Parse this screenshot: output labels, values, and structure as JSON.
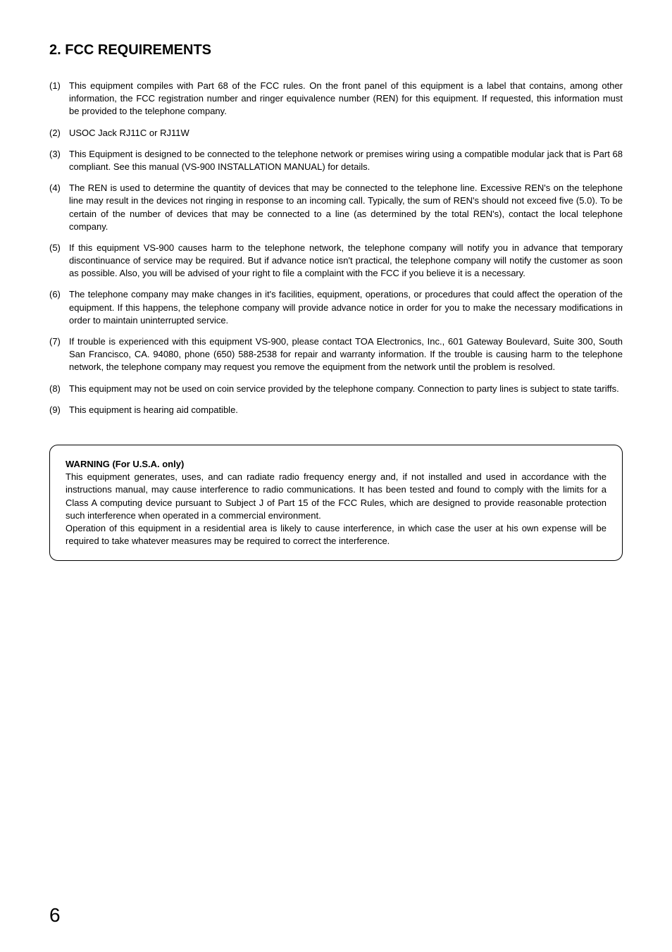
{
  "title": "2. FCC REQUIREMENTS",
  "title_fontsize": 20,
  "title_fontweight": "bold",
  "text_color": "#000000",
  "background_color": "#ffffff",
  "body_fontsize": 13,
  "body_line_height": 1.4,
  "items": [
    {
      "num": "(1)",
      "text": "This equipment compiles with Part 68 of the FCC rules. On the front panel of this equipment is a label that contains, among other information, the FCC registration number and ringer equivalence number (REN) for this equipment. If requested, this information must be provided to the telephone company."
    },
    {
      "num": "(2)",
      "text": "USOC Jack   RJ11C or RJ11W"
    },
    {
      "num": "(3)",
      "text": "This Equipment is designed to be connected to the telephone network or premises wiring using a compatible modular jack that is Part 68 compliant. See this manual (VS-900 INSTALLATION MANUAL) for details."
    },
    {
      "num": "(4)",
      "text": "The REN is used to determine the quantity of devices that may be connected to the telephone line. Excessive REN's on the telephone line may result in the devices not ringing in response to an incoming call. Typically, the sum of REN's should not exceed five (5.0). To be certain of the number of devices that may be connected to a line (as determined by the total REN's), contact the local telephone company."
    },
    {
      "num": "(5)",
      "text": "If this equipment VS-900 causes harm to the telephone network, the telephone company will notify you in advance that temporary discontinuance of service may be required. But if advance notice isn't practical, the telephone company will notify the customer as soon as possible. Also, you will be advised of your right to file a complaint with the FCC if you believe it is a necessary."
    },
    {
      "num": "(6)",
      "text": "The telephone company may make changes in it's facilities, equipment, operations, or procedures that could affect the operation of the equipment. If this happens, the telephone company will provide advance notice in order for you to make the necessary modifications in order to maintain uninterrupted service."
    },
    {
      "num": "(7)",
      "text": "If trouble is experienced with this equipment VS-900, please contact TOA Electronics, Inc., 601 Gateway Boulevard, Suite 300, South San Francisco, CA. 94080, phone (650) 588-2538 for repair and warranty information. If the trouble is causing harm to the telephone network, the telephone company may request you remove the equipment from the network until the problem is resolved."
    },
    {
      "num": "(8)",
      "text": "This equipment may not be used on coin service provided by the telephone company. Connection to party lines is subject to state tariffs."
    },
    {
      "num": "(9)",
      "text": "This equipment is hearing aid compatible."
    }
  ],
  "warning": {
    "title": "WARNING (For U.S.A. only)",
    "paragraph1": "This equipment generates, uses, and can radiate radio frequency energy and, if not installed and used in accordance with the instructions manual, may cause interference to radio communications. It has been tested and found to comply with the limits for a Class A computing device pursuant to Subject J of Part 15 of the FCC Rules, which are designed to provide reasonable protection such interference when operated in a commercial environment.",
    "paragraph2": "Operation of this equipment in a residential area is likely to cause interference, in which case the user at his own expense will be required to take whatever measures may be required to correct the interference.",
    "border_color": "#000000",
    "border_radius": 12,
    "border_width": 1
  },
  "page_number": "6",
  "page_number_fontsize": 28
}
